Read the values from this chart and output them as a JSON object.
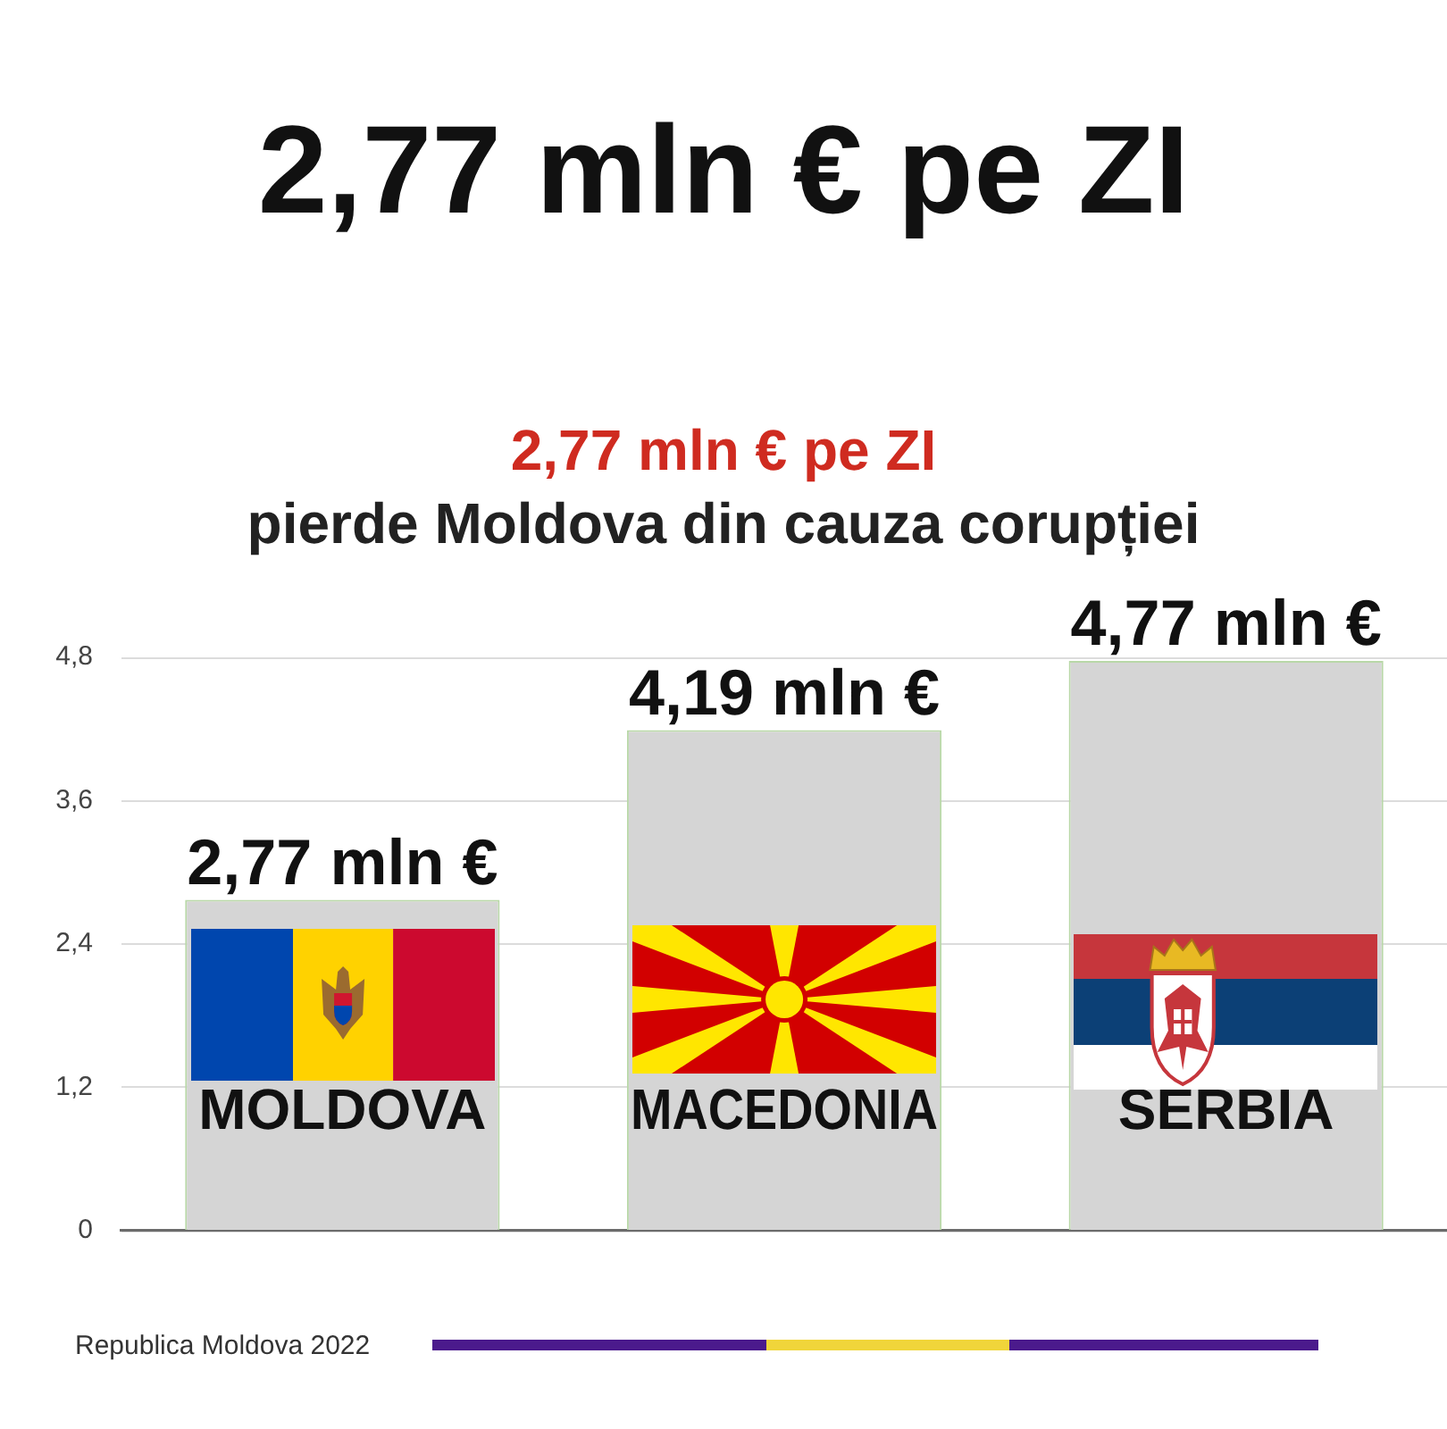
{
  "chart_data": {
    "type": "bar",
    "title": "2,77 mln € pe ZI",
    "subtitle": "2,77 mln € pe ZI\npierde Moldova din cauza corupției",
    "categories": [
      "MOLDOVA",
      "MACEDONIA",
      "SERBIA"
    ],
    "values": [
      2.77,
      4.19,
      4.77
    ],
    "color": "#d5d5d5",
    "value_labels": [
      "2,77 mln €",
      "4,19 mln €",
      "4,77 mln €"
    ],
    "ylim": [
      0,
      4.8
    ],
    "yticks": [
      0,
      {
        "value": 1.2,
        "label": "1,2"
      },
      {
        "value": 2.4,
        "label": "2,4"
      },
      {
        "value": 3.6,
        "label": "3,6"
      },
      {
        "value": 4.8,
        "label": "4,8"
      }
    ],
    "grid": "y",
    "annotations": [
      "Republica Moldova 2022"
    ]
  }
}
